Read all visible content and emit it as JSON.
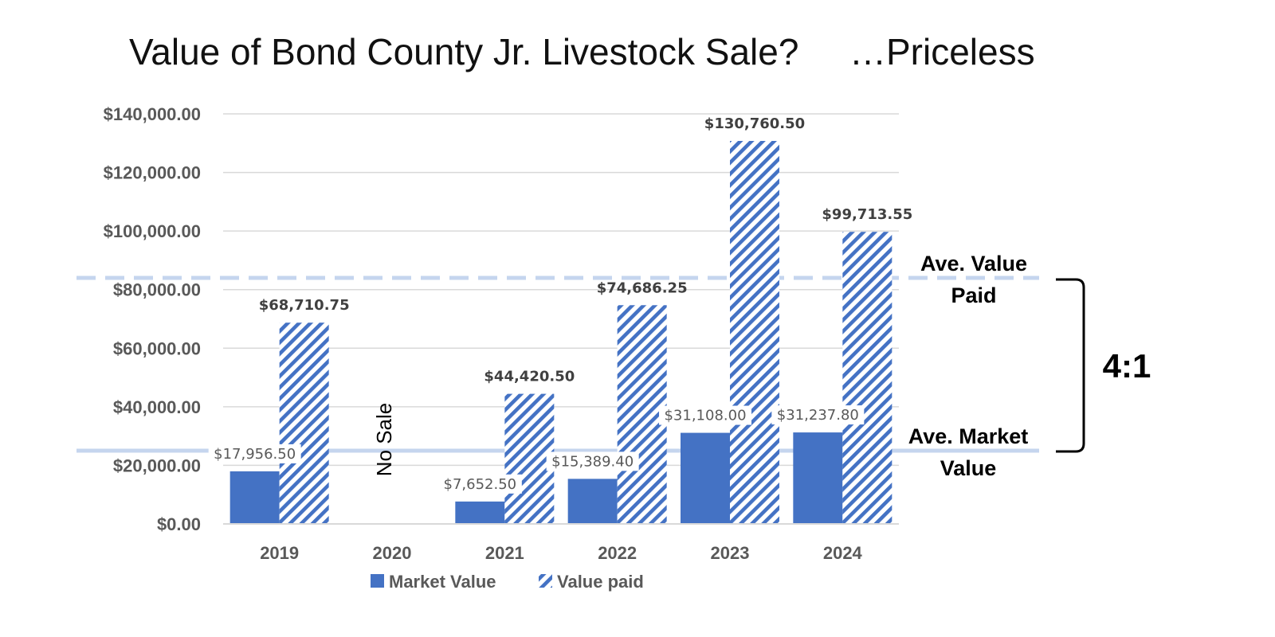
{
  "title_left": "Value of Bond County Jr. Livestock Sale?",
  "title_right": "…Priceless",
  "chart_data": {
    "type": "bar",
    "categories": [
      "2019",
      "2020",
      "2021",
      "2022",
      "2023",
      "2024"
    ],
    "series": [
      {
        "name": "Market Value",
        "values": [
          17956.5,
          null,
          7652.5,
          15389.4,
          31108.0,
          31237.8
        ],
        "labels": [
          "$17,956.50",
          "",
          "$7,652.50",
          "$15,389.40",
          "$31,108.00",
          "$31,237.80"
        ],
        "color": "#4472c4",
        "pattern": "solid"
      },
      {
        "name": "Value paid",
        "values": [
          68710.75,
          null,
          44420.5,
          74686.25,
          130760.5,
          99713.55
        ],
        "labels": [
          "$68,710.75",
          "",
          "$44,420.50",
          "$74,686.25",
          "$130,760.50",
          "$99,713.55"
        ],
        "color": "#4472c4",
        "pattern": "diagonal-stripes"
      }
    ],
    "ylim": [
      0,
      140000
    ],
    "yticks": [
      0,
      20000,
      40000,
      60000,
      80000,
      100000,
      120000,
      140000
    ],
    "ytick_labels": [
      "$0.00",
      "$20,000.00",
      "$40,000.00",
      "$60,000.00",
      "$80,000.00",
      "$100,000.00",
      "$120,000.00",
      "$140,000.00"
    ],
    "grid": true,
    "legend_position": "bottom",
    "annotations": {
      "no_sale": "No Sale",
      "ave_value_paid_line1": "Ave. Value",
      "ave_value_paid_line2": "Paid",
      "ave_market_line1": "Ave. Market",
      "ave_market_line2": "Value",
      "ratio": "4:1"
    },
    "reference_lines": [
      {
        "value": 84000,
        "style": "dashed",
        "color": "#c5d5ee"
      },
      {
        "value": 25000,
        "style": "solid",
        "color": "#c5d5ee"
      }
    ]
  }
}
